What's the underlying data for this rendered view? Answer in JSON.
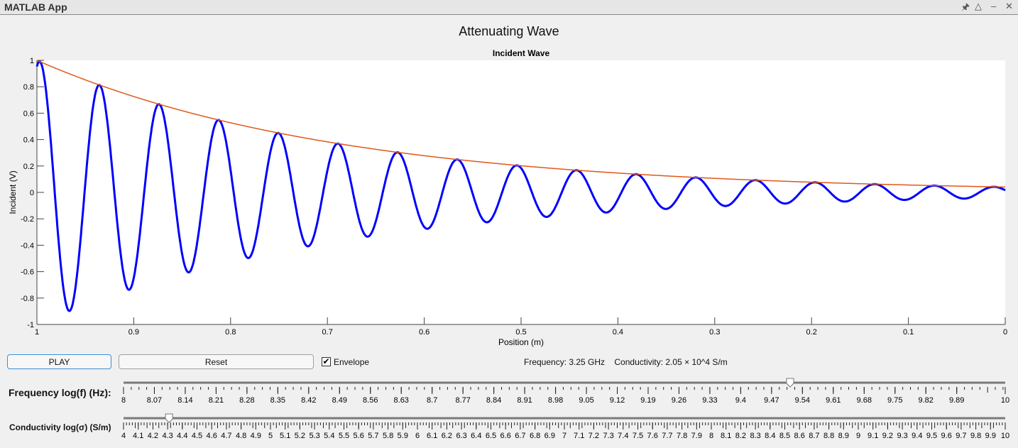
{
  "window": {
    "title": "MATLAB App",
    "controls": [
      "pin-icon",
      "collapse-icon",
      "minimize-icon",
      "close-icon"
    ]
  },
  "main_title": "Attenuating Wave",
  "chart_data": {
    "type": "line",
    "title": "Incident Wave",
    "xlabel": "Position (m)",
    "ylabel": "Incident (V)",
    "xlim": [
      1,
      0
    ],
    "x_reversed": true,
    "ylim": [
      -1,
      1
    ],
    "xticks": [
      "1",
      "0.9",
      "0.8",
      "0.7",
      "0.6",
      "0.5",
      "0.4",
      "0.3",
      "0.2",
      "0.1",
      "0"
    ],
    "yticks": [
      "1",
      "0.8",
      "0.6",
      "0.4",
      "0.2",
      "0",
      "-0.2",
      "-0.4",
      "-0.6",
      "-0.8",
      "-1"
    ],
    "grid": false,
    "series": [
      {
        "kind": "wave",
        "color": "#0000ff",
        "amplitude": 1,
        "attenuation_np_per_m": 3.2,
        "wavelength_m": 0.0616,
        "peaks": [
          [
            1,
            0.98
          ],
          [
            0.934,
            0.8
          ],
          [
            0.874,
            0.66
          ],
          [
            0.812,
            0.54
          ],
          [
            0.75,
            0.44
          ],
          [
            0.69,
            0.36
          ],
          [
            0.628,
            0.3
          ],
          [
            0.566,
            0.24
          ],
          [
            0.505,
            0.2
          ],
          [
            0.443,
            0.16
          ],
          [
            0.381,
            0.13
          ],
          [
            0.32,
            0.11
          ],
          [
            0.258,
            0.09
          ],
          [
            0.197,
            0.075
          ],
          [
            0.135,
            0.06
          ],
          [
            0.074,
            0.05
          ]
        ],
        "troughs": [
          [
            0.967,
            -0.89
          ],
          [
            0.904,
            -0.73
          ],
          [
            0.843,
            -0.59
          ],
          [
            0.781,
            -0.48
          ],
          [
            0.72,
            -0.4
          ],
          [
            0.659,
            -0.33
          ],
          [
            0.597,
            -0.27
          ],
          [
            0.535,
            -0.22
          ],
          [
            0.474,
            -0.18
          ],
          [
            0.412,
            -0.15
          ],
          [
            0.351,
            -0.12
          ],
          [
            0.289,
            -0.1
          ],
          [
            0.228,
            -0.08
          ],
          [
            0.166,
            -0.066
          ],
          [
            0.105,
            -0.054
          ],
          [
            0.043,
            -0.044
          ]
        ]
      },
      {
        "kind": "envelope",
        "color": "#e0581a",
        "x": [
          1,
          0.9,
          0.8,
          0.7,
          0.6,
          0.5,
          0.4,
          0.3,
          0.2,
          0.1,
          0
        ],
        "y": [
          1,
          0.73,
          0.53,
          0.38,
          0.28,
          0.2,
          0.15,
          0.11,
          0.08,
          0.06,
          0.04
        ]
      }
    ]
  },
  "controls": {
    "play_label": "PLAY",
    "reset_label": "Reset",
    "envelope_label": "Envelope",
    "envelope_checked": true,
    "status_text": "Frequency: 3.25 GHz    Conductivity: 2.05 × 10^4 S/m"
  },
  "sliders": {
    "frequency": {
      "label": "Frequency log(f) (Hz):",
      "min": 8,
      "max": 10,
      "value": 9.512,
      "tick_labels": [
        "8",
        "8.07",
        "8.14",
        "8.21",
        "8.28",
        "8.35",
        "8.42",
        "8.49",
        "8.56",
        "8.63",
        "8.7",
        "8.77",
        "8.84",
        "8.91",
        "8.98",
        "9.05",
        "9.12",
        "9.19",
        "9.26",
        "9.33",
        "9.4",
        "9.47",
        "9.54",
        "9.61",
        "9.68",
        "9.75",
        "9.82",
        "9.89",
        "10"
      ]
    },
    "conductivity": {
      "label": "Conductivity log(σ) (S/m)",
      "min": 4,
      "max": 10,
      "value": 4.31,
      "tick_labels": [
        "4",
        "4.1",
        "4.2",
        "4.3",
        "4.4",
        "4.5",
        "4.6",
        "4.7",
        "4.8",
        "4.9",
        "5",
        "5.1",
        "5.2",
        "5.3",
        "5.4",
        "5.5",
        "5.6",
        "5.7",
        "5.8",
        "5.9",
        "6",
        "6.1",
        "6.2",
        "6.3",
        "6.4",
        "6.5",
        "6.6",
        "6.7",
        "6.8",
        "6.9",
        "7",
        "7.1",
        "7.2",
        "7.3",
        "7.4",
        "7.5",
        "7.6",
        "7.7",
        "7.8",
        "7.9",
        "8",
        "8.1",
        "8.2",
        "8.3",
        "8.4",
        "8.5",
        "8.6",
        "8.7",
        "8.8",
        "8.9",
        "9",
        "9.1",
        "9.2",
        "9.3",
        "9.4",
        "9.5",
        "9.6",
        "9.7",
        "9.8",
        "9.9",
        "10"
      ]
    }
  }
}
